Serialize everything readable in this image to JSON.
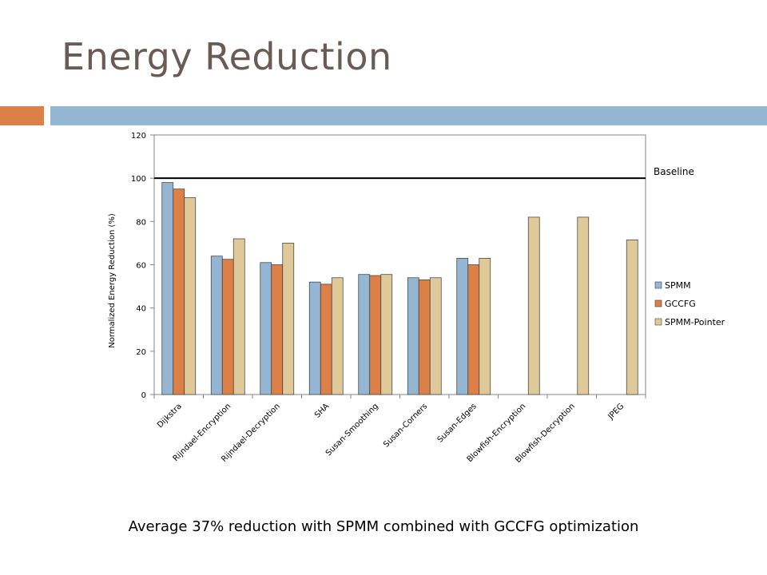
{
  "slide": {
    "title": "Energy Reduction",
    "caption": "Average 37% reduction with SPMM combined with GCCFG optimization"
  },
  "colors": {
    "title": "#6b5b55",
    "accent_orange": "#dd8047",
    "accent_blue": "#94b6d2"
  },
  "chart_data": {
    "type": "bar",
    "title": "",
    "xlabel": "",
    "ylabel": "Normalized Energy Reduction (%)",
    "ylim": [
      0,
      120
    ],
    "yticks": [
      0,
      20,
      40,
      60,
      80,
      100,
      120
    ],
    "grid": false,
    "legend_position": "right",
    "categories": [
      "Dijkstra",
      "Rijndael-Encryption",
      "Rijndael-Decryption",
      "SHA",
      "Susan-Smoothing",
      "Susan-Corners",
      "Susan-Edges",
      "Blowfish-Encryption",
      "Blowfish-Decryption",
      "JPEG"
    ],
    "series": [
      {
        "name": "SPMM",
        "color": "#94b6d2",
        "values": [
          98,
          64,
          61,
          52,
          55.5,
          54,
          63,
          null,
          null,
          null
        ]
      },
      {
        "name": "GCCFG",
        "color": "#dd8047",
        "values": [
          95,
          62.5,
          60,
          51,
          55,
          53,
          60,
          null,
          null,
          null
        ]
      },
      {
        "name": "SPMM-Pointer",
        "color": "#dfc999",
        "values": [
          91,
          72,
          70,
          54,
          55.5,
          54,
          63,
          82,
          82,
          71.5
        ]
      }
    ],
    "reference_line": {
      "value": 100,
      "label": "Baseline"
    }
  }
}
